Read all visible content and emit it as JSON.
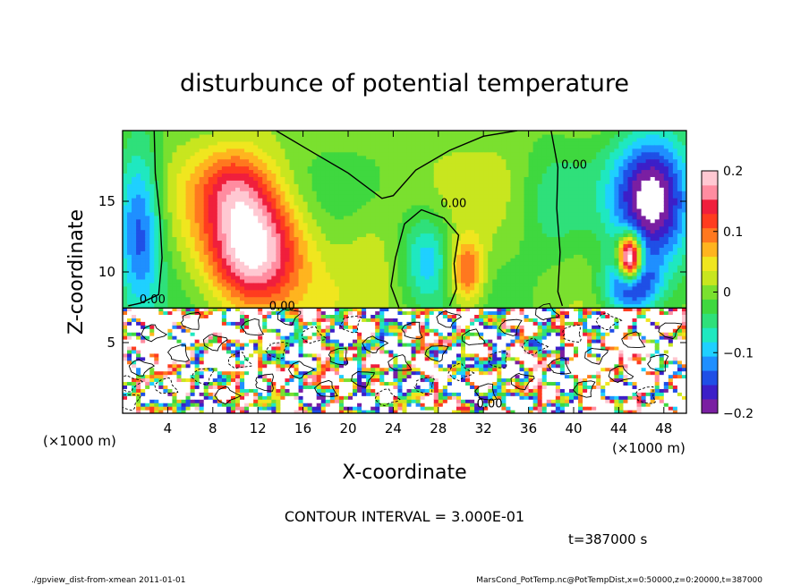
{
  "chart_data": {
    "type": "heatmap",
    "title": "disturbunce of potential temperature",
    "xlabel": "X-coordinate",
    "ylabel": "Z-coordinate",
    "x_unit": "(×1000 m)",
    "z_unit": "(×1000 m)",
    "xlim": [
      0,
      50
    ],
    "ylim": [
      0,
      20
    ],
    "x_ticks": [
      4,
      8,
      12,
      16,
      20,
      24,
      28,
      32,
      36,
      40,
      44,
      48
    ],
    "y_ticks": [
      5,
      10,
      15
    ],
    "colorbar": {
      "min": -0.2,
      "max": 0.2,
      "ticks": [
        0.2,
        0.1,
        0,
        -0.1,
        -0.2
      ],
      "tick_labels": [
        "0.2",
        "0.1",
        "0",
        "−0.1",
        "−0.2"
      ],
      "colors": [
        "#7a1fa2",
        "#3c1fc8",
        "#1f4fe6",
        "#1f8fff",
        "#1fd0ff",
        "#1fe8c0",
        "#2fe07a",
        "#3fd83f",
        "#7ae02f",
        "#c8e61f",
        "#f0e61f",
        "#ffb41f",
        "#ff781f",
        "#ff3c1f",
        "#f01f3c",
        "#ff8ca0",
        "#ffc8d2"
      ]
    },
    "contour_label": "0.00",
    "contour_interval_text": "CONTOUR INTERVAL = 3.000E-01",
    "time_text": "t=387000 s",
    "footer_left": "./gpview_dist-from-xmean   2011-01-01",
    "footer_right": "MarsCond_PotTemp.nc@PotTempDist,x=0:50000,z=0:20000,t=387000",
    "anomalies": [
      {
        "x": 11.5,
        "z": 11.5,
        "sx": 4.2,
        "sz": 4.0,
        "a": 0.22
      },
      {
        "x": 10.0,
        "z": 16.0,
        "sx": 3.5,
        "sz": 3.0,
        "a": 0.1
      },
      {
        "x": 30.5,
        "z": 10.0,
        "sx": 1.6,
        "sz": 2.4,
        "a": 0.13
      },
      {
        "x": 27.0,
        "z": 11.0,
        "sx": 2.2,
        "sz": 3.2,
        "a": -0.09
      },
      {
        "x": 1.5,
        "z": 13.0,
        "sx": 2.0,
        "sz": 6.0,
        "a": -0.14
      },
      {
        "x": 47.0,
        "z": 15.0,
        "sx": 3.5,
        "sz": 5.0,
        "a": -0.2
      },
      {
        "x": 45.0,
        "z": 9.0,
        "sx": 2.5,
        "sz": 2.0,
        "a": -0.18
      },
      {
        "x": 45.0,
        "z": 11.0,
        "sx": 1.0,
        "sz": 1.6,
        "a": 0.34
      },
      {
        "x": 38.0,
        "z": 15.0,
        "sx": 3.0,
        "sz": 4.0,
        "a": -0.05
      },
      {
        "x": 22.0,
        "z": 12.0,
        "sx": 2.5,
        "sz": 3.5,
        "a": 0.02
      }
    ]
  }
}
